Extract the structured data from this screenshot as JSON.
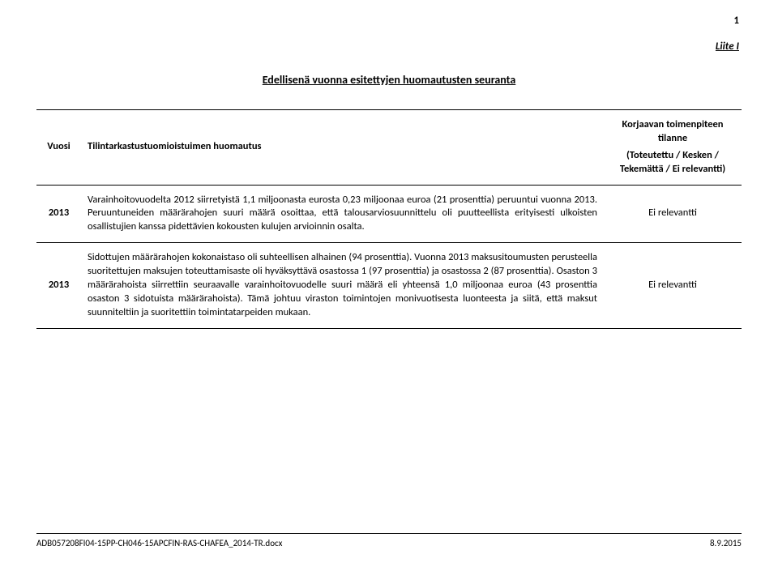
{
  "page_number": "1",
  "annex_label": "Liite I",
  "title": "Edellisenä vuonna esitettyjen huomautusten seuranta",
  "table": {
    "header": {
      "year": "Vuosi",
      "comment": "Tilintarkastustuomioistuimen huomautus",
      "status_top": "Korjaavan toimenpiteen tilanne",
      "status_sub": "(Toteutettu / Kesken / Tekemättä / Ei relevantti)"
    },
    "rows": [
      {
        "year": "2013",
        "comment": "Varainhoitovuodelta 2012 siirretyistä 1,1 miljoonasta eurosta 0,23 miljoonaa euroa (21 prosenttia) peruuntui vuonna 2013. Peruuntuneiden määrärahojen suuri määrä osoittaa, että talousarviosuunnittelu oli puutteellista erityisesti ulkoisten osallistujien kanssa pidettävien kokousten kulujen arvioinnin osalta.",
        "status": "Ei relevantti"
      },
      {
        "year": "2013",
        "comment": "Sidottujen määrärahojen kokonaistaso oli suhteellisen alhainen (94 prosenttia). Vuonna 2013 maksusitoumusten perusteella suoritettujen maksujen toteuttamisaste oli hyväksyttävä osastossa 1 (97 prosenttia) ja osastossa 2 (87 prosenttia). Osaston 3 määrärahoista siirrettiin seuraavalle varainhoitovuodelle suuri määrä eli yhteensä 1,0 miljoonaa euroa (43 prosenttia osaston 3 sidotuista määrärahoista). Tämä johtuu viraston toimintojen monivuotisesta luonteesta ja siitä, että maksut suunniteltiin ja suoritettiin toimintatarpeiden mukaan.",
        "status": "Ei relevantti"
      }
    ]
  },
  "footer": {
    "left": "ADB057208FI04-15PP-CH046-15APCFIN-RAS-CHAFEA_2014-TR.docx",
    "right": "8.9.2015"
  }
}
